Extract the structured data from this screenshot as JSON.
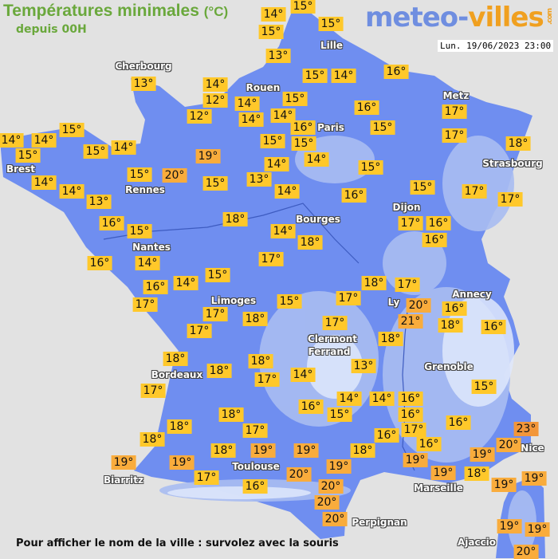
{
  "header": {
    "title": "Températures minimales",
    "title_unit": "(°C)",
    "subtitle": "depuis 00H"
  },
  "logo": {
    "part1": "meteo-",
    "part2": "villes",
    "suffix": ".com"
  },
  "datetime": "Lun. 19/06/2023 23:00",
  "footer": "Pour afficher le nom de la ville : survolez avec la souris",
  "colors": {
    "background": "#e2e2e2",
    "land": "#6f8ef0",
    "mountains": "#a9bdf2",
    "high_mountains": "#dfe7fb",
    "title": "#6aa83c",
    "temp_yellow": "#ffc82a",
    "temp_orange": "#f9ac3c",
    "temp_hot": "#f2963a"
  },
  "cities": [
    "Cherbourg",
    "Lille",
    "Rouen",
    "Metz",
    "Paris",
    "Strasbourg",
    "Brest",
    "Rennes",
    "Dijon",
    "Bourges",
    "Nantes",
    "Annecy",
    "Limoges",
    "Ly",
    "Clermont",
    "Ferrand",
    "Bordeaux",
    "Grenoble",
    "Toulouse",
    "Nice",
    "Biarritz",
    "Marseille",
    "Perpignan",
    "Ajaccio"
  ],
  "temperatures": [
    "14°",
    "15°",
    "15°",
    "15°",
    "13°",
    "16°",
    "15°",
    "14°",
    "13°",
    "14°",
    "12°",
    "14°",
    "15°",
    "12°",
    "14°",
    "14°",
    "16°",
    "16°",
    "15°",
    "17°",
    "17°",
    "18°",
    "15°",
    "14°",
    "14°",
    "15°",
    "15°",
    "14°",
    "15°",
    "15°",
    "14°",
    "19°",
    "20°",
    "15°",
    "14°",
    "15°",
    "14°",
    "14°",
    "13°",
    "15°",
    "13°",
    "14°",
    "16°",
    "15°",
    "17°",
    "17°",
    "16°",
    "15°",
    "18°",
    "14°",
    "18°",
    "17°",
    "16°",
    "16°",
    "16°",
    "14°",
    "17°",
    "15°",
    "16°",
    "14°",
    "17°",
    "15°",
    "17°",
    "18°",
    "17°",
    "20°",
    "21°",
    "16°",
    "18°",
    "16°",
    "17°",
    "17°",
    "18°",
    "17°",
    "18°",
    "13°",
    "18°",
    "18°",
    "18°",
    "17°",
    "14°",
    "17°",
    "16°",
    "14°",
    "15°",
    "14°",
    "16°",
    "16°",
    "15°",
    "16°",
    "18°",
    "17°",
    "16°",
    "17°",
    "18°",
    "18°",
    "18°",
    "16°",
    "19°",
    "19°",
    "19°",
    "23°",
    "20°",
    "19°",
    "19°",
    "18°",
    "19°",
    "19°",
    "17°",
    "20°",
    "19°",
    "18°",
    "19°",
    "19°",
    "16°",
    "20°",
    "20°",
    "20°",
    "19°",
    "19°",
    "20°"
  ]
}
